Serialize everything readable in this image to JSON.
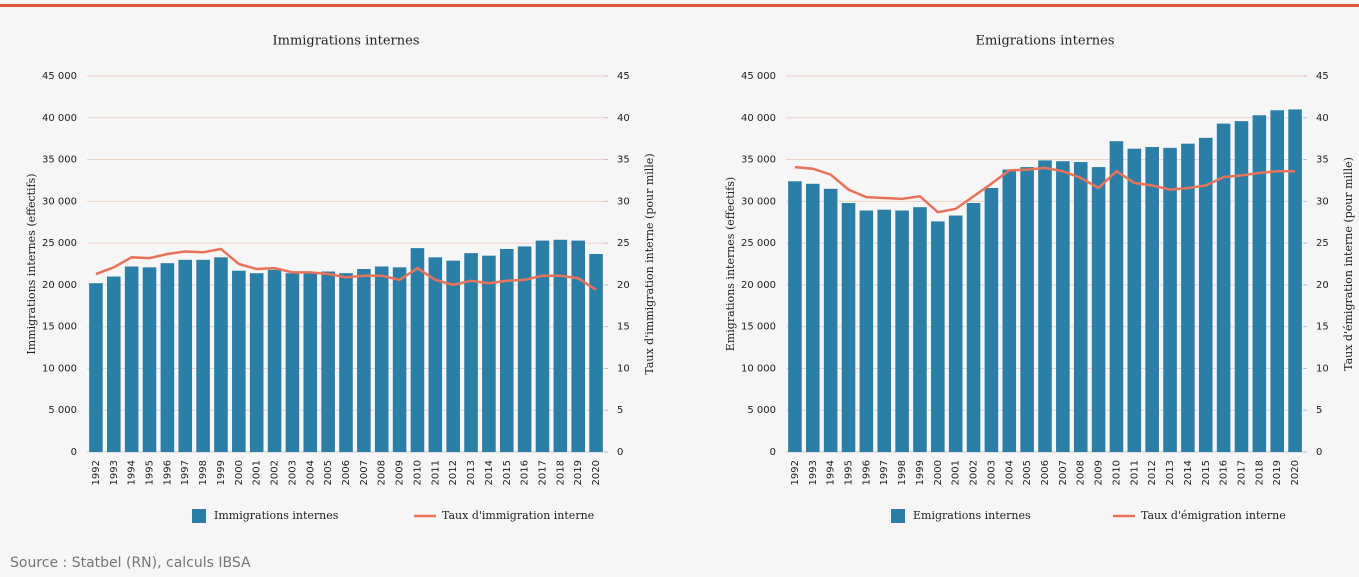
{
  "chart_data": [
    {
      "type": "bar",
      "title": "Immigrations internes",
      "ylabel": "Immigrations internes (effectifs)",
      "y2label": "Taux d'immigration interne (pour mille)",
      "categories": [
        "1992",
        "1993",
        "1994",
        "1995",
        "1996",
        "1997",
        "1998",
        "1999",
        "2000",
        "2001",
        "2002",
        "2003",
        "2004",
        "2005",
        "2006",
        "2007",
        "2008",
        "2009",
        "2010",
        "2011",
        "2012",
        "2013",
        "2014",
        "2015",
        "2016",
        "2017",
        "2018",
        "2019",
        "2020"
      ],
      "series": [
        {
          "name": "Immigrations internes",
          "type": "bar",
          "color": "#2b7ea6",
          "values": [
            20200,
            21000,
            22200,
            22100,
            22600,
            23000,
            23000,
            23300,
            21700,
            21400,
            21800,
            21400,
            21500,
            21600,
            21400,
            21900,
            22200,
            22100,
            24400,
            23300,
            22900,
            23800,
            23500,
            24300,
            24600,
            25300,
            25400,
            25300,
            23700
          ]
        },
        {
          "name": "Taux d'immigration interne",
          "type": "line",
          "axis": "y2",
          "color": "#e8735a",
          "values": [
            21.3,
            22.1,
            23.3,
            23.2,
            23.7,
            24.0,
            23.9,
            24.3,
            22.5,
            21.9,
            22.0,
            21.5,
            21.5,
            21.3,
            20.9,
            21.1,
            21.1,
            20.6,
            22.0,
            20.6,
            20.0,
            20.5,
            20.2,
            20.5,
            20.6,
            21.1,
            21.1,
            20.8,
            19.4
          ]
        }
      ],
      "ylim": [
        0,
        45000
      ],
      "yticks": [
        0,
        {
          "value": 5000,
          "label": "5 000"
        },
        {
          "value": 10000,
          "label": "10 000"
        },
        {
          "value": 15000,
          "label": "15 000"
        },
        {
          "value": 20000,
          "label": "20 000"
        },
        {
          "value": 25000,
          "label": "25 000"
        },
        {
          "value": 30000,
          "label": "30 000"
        },
        {
          "value": 35000,
          "label": "35 000"
        },
        {
          "value": 40000,
          "label": "40 000"
        },
        {
          "value": 45000,
          "label": "45 000"
        }
      ],
      "y2lim": [
        0,
        45
      ],
      "y2ticks": [
        0,
        5,
        10,
        15,
        20,
        25,
        30,
        35,
        40,
        45
      ],
      "grid": true,
      "grid_color": "#f0cfc8",
      "legend": "bottom"
    },
    {
      "type": "bar",
      "title": "Emigrations internes",
      "ylabel": "Emigrations internes (effectifs)",
      "y2label": "Taux d'émigration interne (pour mille)",
      "categories": [
        "1992",
        "1993",
        "1994",
        "1995",
        "1996",
        "1997",
        "1998",
        "1999",
        "2000",
        "2001",
        "2002",
        "2003",
        "2004",
        "2005",
        "2006",
        "2007",
        "2008",
        "2009",
        "2010",
        "2011",
        "2012",
        "2013",
        "2014",
        "2015",
        "2016",
        "2017",
        "2018",
        "2019",
        "2020"
      ],
      "series": [
        {
          "name": "Emigrations internes",
          "type": "bar",
          "color": "#2b7ea6",
          "values": [
            32400,
            32100,
            31500,
            29800,
            28900,
            29000,
            28900,
            29300,
            27600,
            28300,
            29800,
            31600,
            33800,
            34100,
            34900,
            34800,
            34700,
            34100,
            37200,
            36300,
            36500,
            36400,
            36900,
            37600,
            39300,
            39600,
            40300,
            40900,
            41000
          ]
        },
        {
          "name": "Taux d'émigration interne",
          "type": "line",
          "axis": "y2",
          "color": "#e8735a",
          "values": [
            34.1,
            33.9,
            33.2,
            31.4,
            30.5,
            30.4,
            30.3,
            30.6,
            28.7,
            29.1,
            30.6,
            32.1,
            33.7,
            33.8,
            34.0,
            33.6,
            32.8,
            31.6,
            33.6,
            32.2,
            31.9,
            31.4,
            31.6,
            31.9,
            32.9,
            33.1,
            33.4,
            33.6,
            33.6
          ]
        }
      ],
      "ylim": [
        0,
        45000
      ],
      "yticks": [
        0,
        {
          "value": 5000,
          "label": "5 000"
        },
        {
          "value": 10000,
          "label": "10 000"
        },
        {
          "value": 15000,
          "label": "15 000"
        },
        {
          "value": 20000,
          "label": "20 000"
        },
        {
          "value": 25000,
          "label": "25 000"
        },
        {
          "value": 30000,
          "label": "30 000"
        },
        {
          "value": 35000,
          "label": "35 000"
        },
        {
          "value": 40000,
          "label": "40 000"
        },
        {
          "value": 45000,
          "label": "45 000"
        }
      ],
      "y2lim": [
        0,
        45
      ],
      "y2ticks": [
        0,
        5,
        10,
        15,
        20,
        25,
        30,
        35,
        40,
        45
      ],
      "grid": true,
      "grid_color": "#f0cfc8",
      "legend": "bottom"
    }
  ],
  "source": "Source : Statbel (RN), calculs IBSA"
}
